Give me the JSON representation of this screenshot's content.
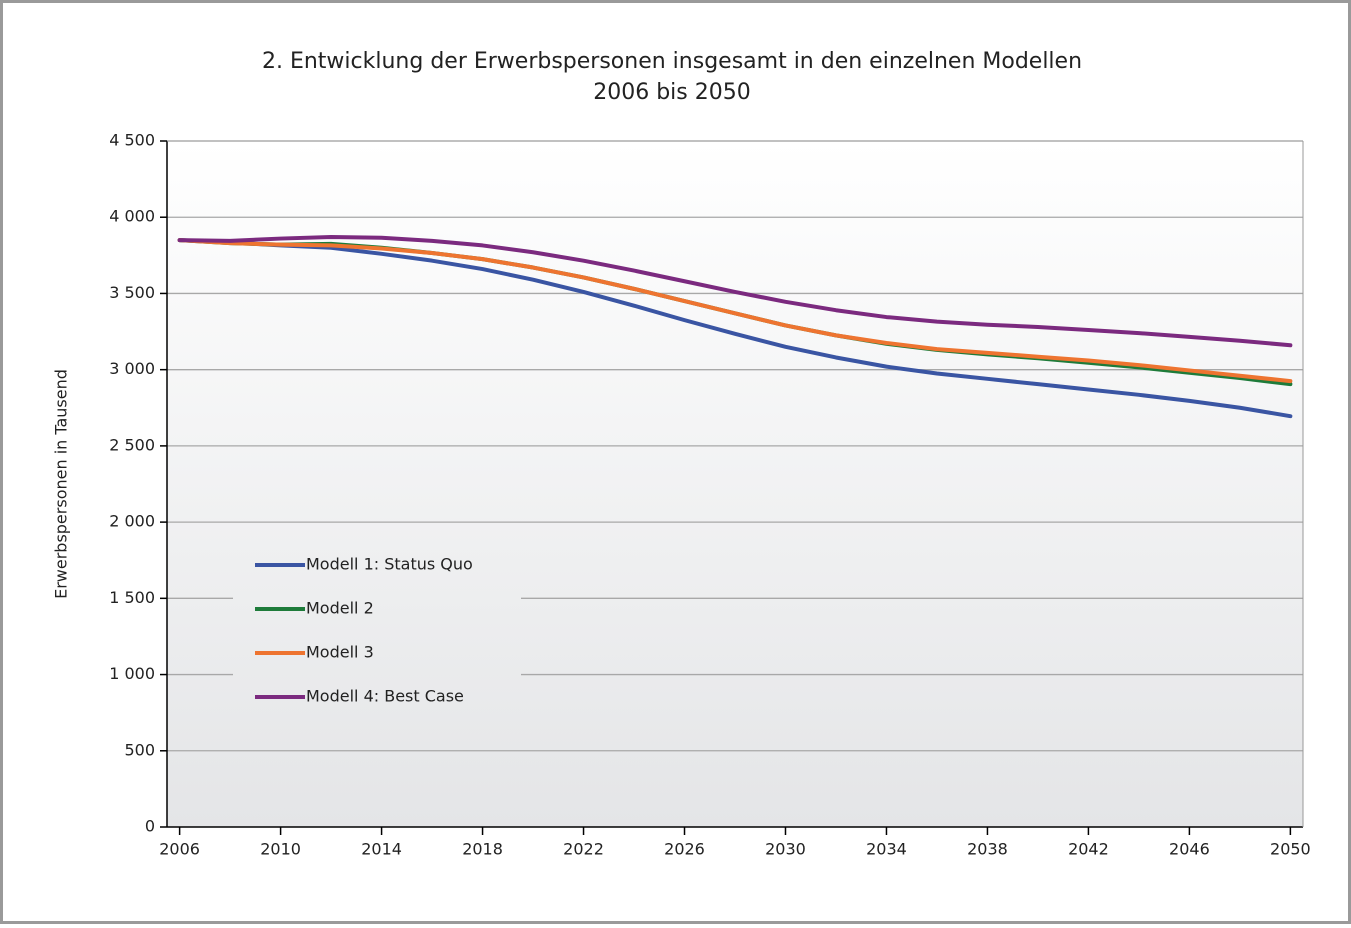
{
  "chart_data": {
    "type": "line",
    "title": "2. Entwicklung der Erwerbspersonen insgesamt in den einzelnen Modellen",
    "subtitle": "2006 bis 2050",
    "ylabel": "Erwerbspersonen in Tausend",
    "x": [
      2006,
      2008,
      2010,
      2012,
      2014,
      2016,
      2018,
      2020,
      2022,
      2024,
      2026,
      2028,
      2030,
      2032,
      2034,
      2036,
      2038,
      2040,
      2042,
      2044,
      2046,
      2048,
      2050
    ],
    "series": [
      {
        "name": "Modell 1: Status Quo",
        "color": "#3a55a3",
        "values": [
          3850,
          3835,
          3815,
          3800,
          3760,
          3715,
          3660,
          3590,
          3510,
          3420,
          3325,
          3235,
          3150,
          3080,
          3020,
          2975,
          2940,
          2905,
          2870,
          2835,
          2795,
          2750,
          2695
        ]
      },
      {
        "name": "Modell 2",
        "color": "#1e7b3a",
        "values": [
          3850,
          3830,
          3820,
          3825,
          3800,
          3765,
          3725,
          3670,
          3605,
          3530,
          3450,
          3370,
          3290,
          3225,
          3170,
          3130,
          3100,
          3075,
          3045,
          3015,
          2980,
          2945,
          2905
        ]
      },
      {
        "name": "Modell 3",
        "color": "#ee7430",
        "values": [
          3850,
          3830,
          3820,
          3815,
          3795,
          3765,
          3725,
          3670,
          3605,
          3530,
          3450,
          3370,
          3290,
          3225,
          3175,
          3135,
          3110,
          3085,
          3060,
          3030,
          2995,
          2960,
          2925
        ]
      },
      {
        "name": "Modell 4: Best Case",
        "color": "#7b2a7f",
        "values": [
          3850,
          3845,
          3860,
          3870,
          3865,
          3845,
          3815,
          3770,
          3715,
          3650,
          3580,
          3510,
          3445,
          3390,
          3345,
          3315,
          3295,
          3280,
          3260,
          3240,
          3215,
          3190,
          3160
        ]
      }
    ],
    "xlim": [
      2005.5,
      2050.5
    ],
    "xticks": [
      2006,
      2010,
      2014,
      2018,
      2022,
      2026,
      2030,
      2034,
      2038,
      2042,
      2046,
      2050
    ],
    "ylim": [
      0,
      4500
    ],
    "yticks": [
      0,
      500,
      {
        "value": 1000,
        "label": "1 000"
      },
      {
        "value": 1500,
        "label": "1 500"
      },
      {
        "value": 2000,
        "label": "2 000"
      },
      {
        "value": 2500,
        "label": "2 500"
      },
      {
        "value": 3000,
        "label": "3 000"
      },
      {
        "value": 3500,
        "label": "3 500"
      },
      {
        "value": 4000,
        "label": "4 000"
      },
      {
        "value": 4500,
        "label": "4 500"
      }
    ],
    "grid": true,
    "legend": "lower left"
  }
}
